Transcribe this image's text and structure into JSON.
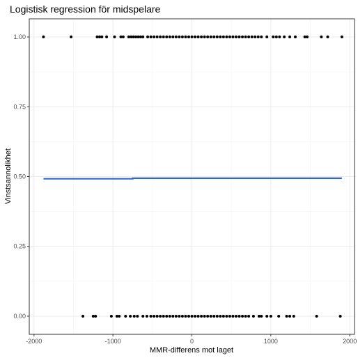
{
  "chart_data": {
    "type": "scatter",
    "title": "Logistisk regression för midspelare",
    "xlabel": "MMR-differens mot laget",
    "ylabel": "Vinstsannolikhet",
    "xlim": [
      -2060,
      2060
    ],
    "ylim": [
      -0.065,
      1.065
    ],
    "x_ticks": [
      -2000,
      -1000,
      0,
      1000,
      2000
    ],
    "x_tick_labels": [
      "-2000",
      "-1000",
      "0",
      "1000",
      "2000"
    ],
    "y_ticks": [
      0.0,
      0.25,
      0.5,
      0.75,
      1.0
    ],
    "y_tick_labels": [
      "0.00",
      "0.25",
      "0.50",
      "0.75",
      "1.00"
    ],
    "grid": true,
    "legend": "none",
    "colors": {
      "points": "#000000",
      "fit_line": "#3366cc",
      "panel_border": "#333333",
      "grid_major": "#ebebeb",
      "grid_minor": "#f5f5f5"
    },
    "series": [
      {
        "type": "scatter",
        "points": [
          {
            "x": -1880,
            "y": 1
          },
          {
            "x": -1530,
            "y": 1
          },
          {
            "x": -1200,
            "y": 1
          },
          {
            "x": -1170,
            "y": 1
          },
          {
            "x": -1140,
            "y": 1
          },
          {
            "x": -1080,
            "y": 1
          },
          {
            "x": -980,
            "y": 1
          },
          {
            "x": -900,
            "y": 1
          },
          {
            "x": -870,
            "y": 1
          },
          {
            "x": -800,
            "y": 1
          },
          {
            "x": -770,
            "y": 1
          },
          {
            "x": -740,
            "y": 1
          },
          {
            "x": -710,
            "y": 1
          },
          {
            "x": -680,
            "y": 1
          },
          {
            "x": -650,
            "y": 1
          },
          {
            "x": -620,
            "y": 1
          },
          {
            "x": -560,
            "y": 1
          },
          {
            "x": -520,
            "y": 1
          },
          {
            "x": -480,
            "y": 1
          },
          {
            "x": -440,
            "y": 1
          },
          {
            "x": -400,
            "y": 1
          },
          {
            "x": -360,
            "y": 1
          },
          {
            "x": -320,
            "y": 1
          },
          {
            "x": -280,
            "y": 1
          },
          {
            "x": -240,
            "y": 1
          },
          {
            "x": -200,
            "y": 1
          },
          {
            "x": -160,
            "y": 1
          },
          {
            "x": -120,
            "y": 1
          },
          {
            "x": -80,
            "y": 1
          },
          {
            "x": -40,
            "y": 1
          },
          {
            "x": 0,
            "y": 1
          },
          {
            "x": 40,
            "y": 1
          },
          {
            "x": 80,
            "y": 1
          },
          {
            "x": 120,
            "y": 1
          },
          {
            "x": 160,
            "y": 1
          },
          {
            "x": 200,
            "y": 1
          },
          {
            "x": 240,
            "y": 1
          },
          {
            "x": 280,
            "y": 1
          },
          {
            "x": 320,
            "y": 1
          },
          {
            "x": 360,
            "y": 1
          },
          {
            "x": 400,
            "y": 1
          },
          {
            "x": 440,
            "y": 1
          },
          {
            "x": 480,
            "y": 1
          },
          {
            "x": 520,
            "y": 1
          },
          {
            "x": 560,
            "y": 1
          },
          {
            "x": 600,
            "y": 1
          },
          {
            "x": 640,
            "y": 1
          },
          {
            "x": 680,
            "y": 1
          },
          {
            "x": 720,
            "y": 1
          },
          {
            "x": 760,
            "y": 1
          },
          {
            "x": 800,
            "y": 1
          },
          {
            "x": 840,
            "y": 1
          },
          {
            "x": 880,
            "y": 1
          },
          {
            "x": 950,
            "y": 1
          },
          {
            "x": 1030,
            "y": 1
          },
          {
            "x": 1070,
            "y": 1
          },
          {
            "x": 1110,
            "y": 1
          },
          {
            "x": 1170,
            "y": 1
          },
          {
            "x": 1240,
            "y": 1
          },
          {
            "x": 1310,
            "y": 1
          },
          {
            "x": 1430,
            "y": 1
          },
          {
            "x": 1460,
            "y": 1
          },
          {
            "x": 1640,
            "y": 1
          },
          {
            "x": 1720,
            "y": 1
          },
          {
            "x": 1900,
            "y": 1
          },
          {
            "x": -1380,
            "y": 0
          },
          {
            "x": -1250,
            "y": 0
          },
          {
            "x": -1220,
            "y": 0
          },
          {
            "x": -1020,
            "y": 0
          },
          {
            "x": -950,
            "y": 0
          },
          {
            "x": -920,
            "y": 0
          },
          {
            "x": -840,
            "y": 0
          },
          {
            "x": -780,
            "y": 0
          },
          {
            "x": -730,
            "y": 0
          },
          {
            "x": -690,
            "y": 0
          },
          {
            "x": -620,
            "y": 0
          },
          {
            "x": -570,
            "y": 0
          },
          {
            "x": -520,
            "y": 0
          },
          {
            "x": -480,
            "y": 0
          },
          {
            "x": -440,
            "y": 0
          },
          {
            "x": -400,
            "y": 0
          },
          {
            "x": -360,
            "y": 0
          },
          {
            "x": -320,
            "y": 0
          },
          {
            "x": -280,
            "y": 0
          },
          {
            "x": -240,
            "y": 0
          },
          {
            "x": -200,
            "y": 0
          },
          {
            "x": -160,
            "y": 0
          },
          {
            "x": -120,
            "y": 0
          },
          {
            "x": -80,
            "y": 0
          },
          {
            "x": -40,
            "y": 0
          },
          {
            "x": 0,
            "y": 0
          },
          {
            "x": 40,
            "y": 0
          },
          {
            "x": 80,
            "y": 0
          },
          {
            "x": 120,
            "y": 0
          },
          {
            "x": 160,
            "y": 0
          },
          {
            "x": 200,
            "y": 0
          },
          {
            "x": 240,
            "y": 0
          },
          {
            "x": 280,
            "y": 0
          },
          {
            "x": 320,
            "y": 0
          },
          {
            "x": 360,
            "y": 0
          },
          {
            "x": 400,
            "y": 0
          },
          {
            "x": 440,
            "y": 0
          },
          {
            "x": 480,
            "y": 0
          },
          {
            "x": 520,
            "y": 0
          },
          {
            "x": 560,
            "y": 0
          },
          {
            "x": 600,
            "y": 0
          },
          {
            "x": 640,
            "y": 0
          },
          {
            "x": 680,
            "y": 0
          },
          {
            "x": 720,
            "y": 0
          },
          {
            "x": 780,
            "y": 0
          },
          {
            "x": 850,
            "y": 0
          },
          {
            "x": 880,
            "y": 0
          },
          {
            "x": 950,
            "y": 0
          },
          {
            "x": 1000,
            "y": 0
          },
          {
            "x": 1100,
            "y": 0
          },
          {
            "x": 1200,
            "y": 0
          },
          {
            "x": 1240,
            "y": 0
          },
          {
            "x": 1290,
            "y": 0
          },
          {
            "x": 1580,
            "y": 0
          },
          {
            "x": 1880,
            "y": 0
          }
        ]
      },
      {
        "type": "line",
        "points": [
          {
            "x": -1880,
            "y": 0.492
          },
          {
            "x": -750,
            "y": 0.492
          },
          {
            "x": -750,
            "y": 0.494
          },
          {
            "x": 1900,
            "y": 0.494
          }
        ]
      }
    ]
  }
}
